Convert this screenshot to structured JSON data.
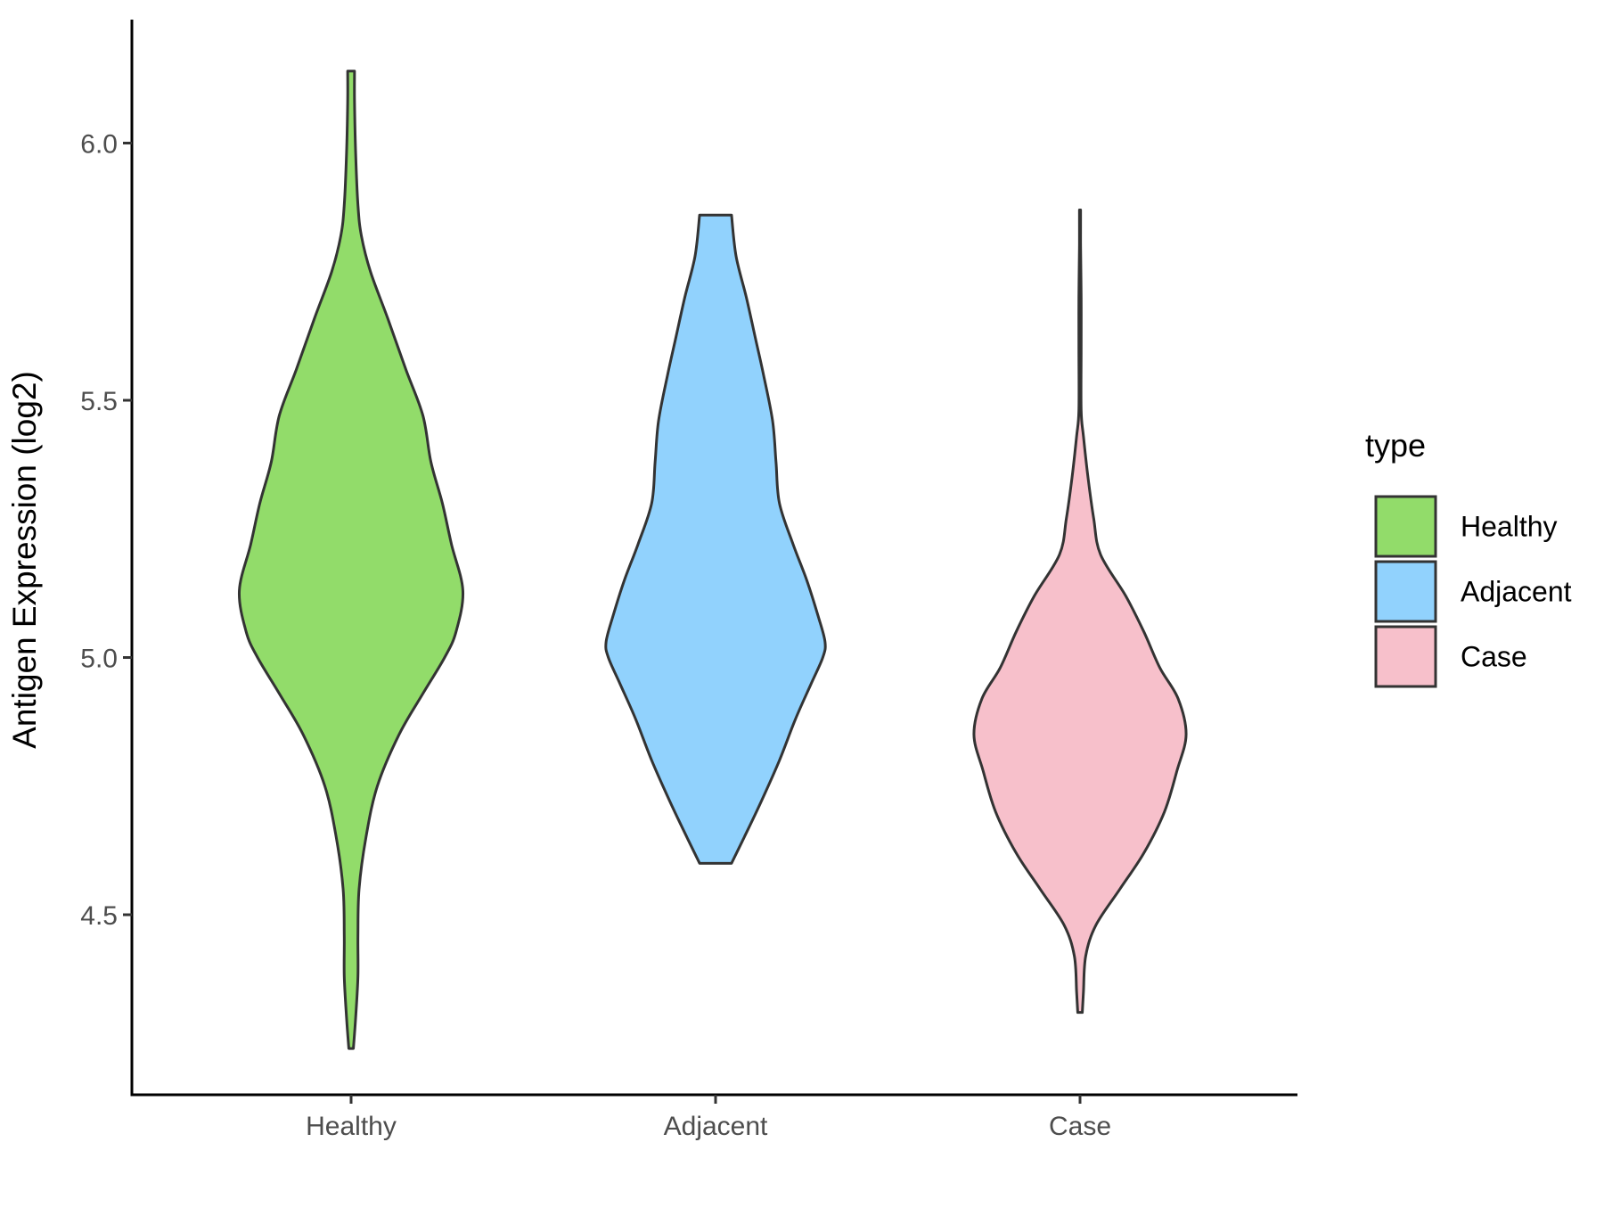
{
  "chart_data": {
    "type": "violin",
    "ylabel": "Antigen Expression (log2)",
    "xlabel": "",
    "ylim": [
      4.15,
      6.24
    ],
    "yticks": [
      4.5,
      5.0,
      5.5,
      6.0
    ],
    "ytick_labels": [
      "4.5",
      "5.0",
      "5.5",
      "6.0"
    ],
    "categories": [
      "Healthy",
      "Adjacent",
      "Case"
    ],
    "legend": {
      "title": "type",
      "placement": "right",
      "items": [
        "Healthy",
        "Adjacent",
        "Case"
      ]
    },
    "colors": {
      "Healthy": "#92DC6A",
      "Adjacent": "#91D2FD",
      "Case": "#F7C0CB",
      "outline": "#333333"
    },
    "series": [
      {
        "name": "Healthy",
        "min": 4.24,
        "max": 6.14,
        "density": [
          [
            4.24,
            0.02
          ],
          [
            4.3,
            0.04
          ],
          [
            4.38,
            0.06
          ],
          [
            4.46,
            0.06
          ],
          [
            4.55,
            0.07
          ],
          [
            4.65,
            0.13
          ],
          [
            4.75,
            0.23
          ],
          [
            4.85,
            0.42
          ],
          [
            4.93,
            0.63
          ],
          [
            5.0,
            0.82
          ],
          [
            5.05,
            0.92
          ],
          [
            5.13,
            0.98
          ],
          [
            5.22,
            0.88
          ],
          [
            5.3,
            0.8
          ],
          [
            5.38,
            0.7
          ],
          [
            5.47,
            0.63
          ],
          [
            5.56,
            0.48
          ],
          [
            5.66,
            0.32
          ],
          [
            5.75,
            0.17
          ],
          [
            5.82,
            0.09
          ],
          [
            5.88,
            0.06
          ],
          [
            5.98,
            0.04
          ],
          [
            6.08,
            0.03
          ],
          [
            6.14,
            0.03
          ]
        ]
      },
      {
        "name": "Adjacent",
        "min": 4.6,
        "max": 5.86,
        "density": [
          [
            4.6,
            0.14
          ],
          [
            4.65,
            0.25
          ],
          [
            4.72,
            0.4
          ],
          [
            4.8,
            0.56
          ],
          [
            4.88,
            0.7
          ],
          [
            4.95,
            0.84
          ],
          [
            5.0,
            0.94
          ],
          [
            5.03,
            0.96
          ],
          [
            5.08,
            0.9
          ],
          [
            5.15,
            0.8
          ],
          [
            5.22,
            0.68
          ],
          [
            5.3,
            0.56
          ],
          [
            5.38,
            0.53
          ],
          [
            5.46,
            0.5
          ],
          [
            5.55,
            0.42
          ],
          [
            5.62,
            0.35
          ],
          [
            5.7,
            0.27
          ],
          [
            5.78,
            0.18
          ],
          [
            5.86,
            0.14
          ]
        ]
      },
      {
        "name": "Case",
        "min": 4.31,
        "max": 5.87,
        "density": [
          [
            4.31,
            0.02
          ],
          [
            4.35,
            0.03
          ],
          [
            4.42,
            0.05
          ],
          [
            4.48,
            0.14
          ],
          [
            4.55,
            0.35
          ],
          [
            4.62,
            0.56
          ],
          [
            4.7,
            0.74
          ],
          [
            4.78,
            0.85
          ],
          [
            4.85,
            0.93
          ],
          [
            4.92,
            0.86
          ],
          [
            4.98,
            0.7
          ],
          [
            5.05,
            0.56
          ],
          [
            5.12,
            0.4
          ],
          [
            5.2,
            0.18
          ],
          [
            5.27,
            0.12
          ],
          [
            5.35,
            0.07
          ],
          [
            5.43,
            0.03
          ],
          [
            5.48,
            0.01
          ],
          [
            5.6,
            0.01
          ],
          [
            5.7,
            0.01
          ],
          [
            5.8,
            0.005
          ],
          [
            5.87,
            0.005
          ]
        ]
      }
    ]
  }
}
